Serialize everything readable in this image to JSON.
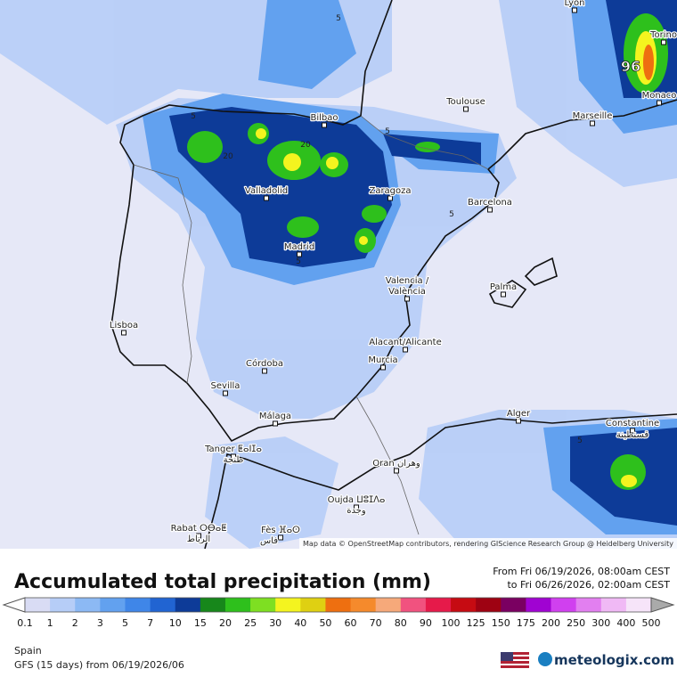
{
  "map": {
    "cities": [
      "Lyon",
      "Torino",
      "Monaco",
      "Marseille",
      "Toulouse",
      "Bilbao",
      "Valladolid",
      "Zaragoza",
      "Barcelona",
      "Madrid",
      "Valencia /",
      "València",
      "Palma",
      "Lisboa",
      "Alacant/Alicante",
      "Murcia",
      "Córdoba",
      "Sevilla",
      "Málaga",
      "Alger",
      "Constantine",
      "قسنطينة",
      "Tanger ⵟⴰⵏⵊⴰ",
      "طنجة",
      "Oran وهران",
      "Oujda ⵡⵓⵊⴷⴰ",
      "وجدة",
      "Rabat ⵔⴱⴰⵟ",
      "الرباط",
      "Fès ⴼⴰⵙ",
      "فاس"
    ],
    "contour_labels": [
      "5",
      "5",
      "20",
      "20",
      "5",
      "5",
      "5",
      "5",
      "96"
    ],
    "attribution": "Map data © OpenStreetMap contributors, rendering GIScience Research Group @ Heidelberg University"
  },
  "legend": {
    "title": "Accumulated total precipitation (mm)",
    "from": "From Fri 06/19/2026, 08:00am CEST",
    "to": "to Fri 06/26/2026, 02:00am CEST",
    "ticks": [
      0.1,
      1,
      2,
      3,
      5,
      7,
      10,
      15,
      20,
      25,
      30,
      40,
      50,
      60,
      70,
      80,
      90,
      100,
      125,
      150,
      175,
      200,
      250,
      300,
      400,
      500
    ],
    "colors": [
      "#d9dcf4",
      "#b6cdf7",
      "#8cb9f4",
      "#62a1ef",
      "#3f86e8",
      "#2164d2",
      "#0d3b98",
      "#17871b",
      "#2ec01c",
      "#7edf22",
      "#f4f41f",
      "#dfd012",
      "#ee6f10",
      "#f58a2c",
      "#f6a97a",
      "#f1527f",
      "#e61a4a",
      "#c60b12",
      "#9e0212",
      "#7a0061",
      "#a003d2",
      "#d040ef",
      "#e27ff0",
      "#f0b9f5",
      "#f6e4f9"
    ]
  },
  "footer": {
    "region": "Spain",
    "model": "GFS (15 days) from 06/19/2026/06",
    "brand": "meteologix.com"
  }
}
